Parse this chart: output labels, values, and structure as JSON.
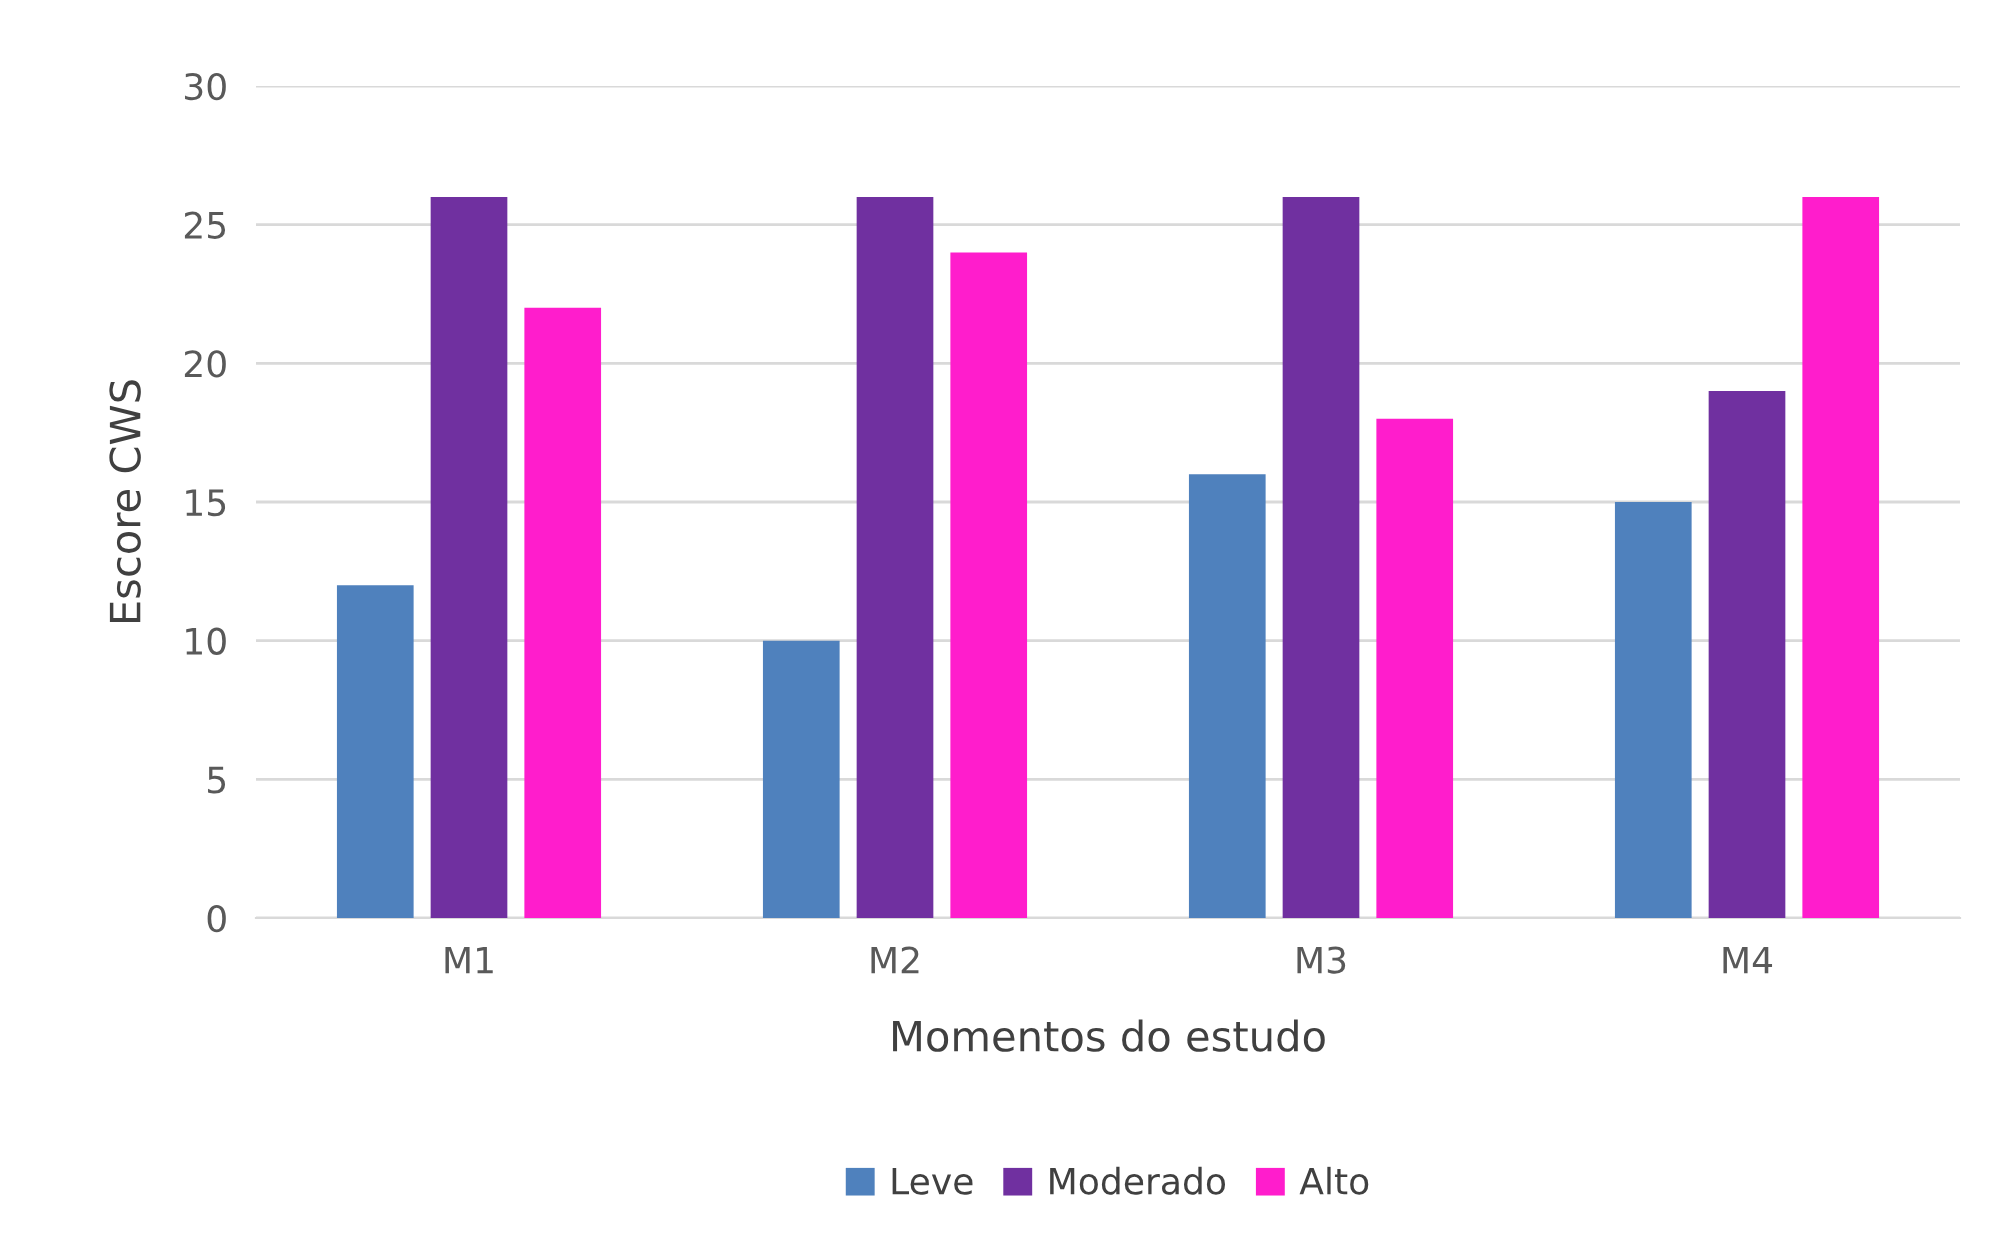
{
  "chart_data": {
    "type": "bar",
    "xlabel": "Momentos do estudo",
    "ylabel": "Escore CWS",
    "categories": [
      "M1",
      "M2",
      "M3",
      "M4"
    ],
    "series": [
      {
        "name": "Leve",
        "color": "#4f81bd",
        "values": [
          12,
          10,
          16,
          15
        ]
      },
      {
        "name": "Moderado",
        "color": "#7030a0",
        "values": [
          26,
          26,
          26,
          19
        ]
      },
      {
        "name": "Alto",
        "color": "#ff1dcc",
        "values": [
          22,
          24,
          18,
          26
        ]
      }
    ],
    "ylim": [
      0,
      30
    ],
    "yticks": [
      0,
      5,
      10,
      15,
      20,
      25,
      30
    ],
    "grid": "y",
    "legend": "bottom"
  }
}
